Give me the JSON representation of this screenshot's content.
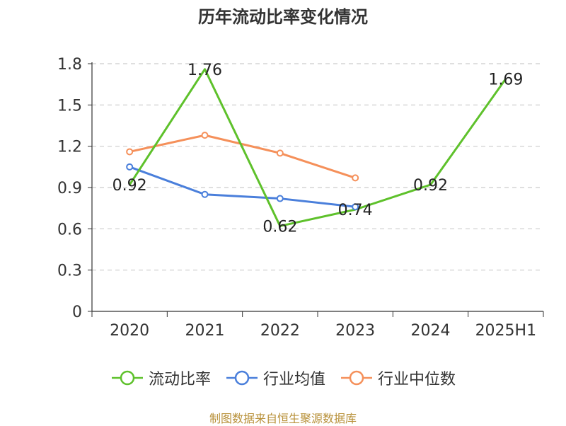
{
  "title": "历年流动比率变化情况",
  "source": "制图数据来自恒生聚源数据库",
  "colors": {
    "grid": "#cccccc",
    "axis": "#333333",
    "text": "#333333"
  },
  "chart_data": {
    "type": "line",
    "title": "历年流动比率变化情况",
    "categories": [
      "2020",
      "2021",
      "2022",
      "2023",
      "2024",
      "2025H1"
    ],
    "ylim": [
      0,
      1.8
    ],
    "yticks": [
      "0",
      "0.3",
      "0.6",
      "0.9",
      "1.2",
      "1.5",
      "1.8"
    ],
    "grid": true,
    "legend_position": "bottom",
    "series": [
      {
        "name": "流动比率",
        "color": "#5ec12b",
        "values": [
          0.92,
          1.76,
          0.62,
          0.74,
          0.92,
          1.69
        ],
        "labels": [
          "0.92",
          "1.76",
          "0.62",
          "0.74",
          "0.92",
          "1.69"
        ],
        "markers": false
      },
      {
        "name": "行业均值",
        "color": "#4a7fdb",
        "values": [
          1.05,
          0.85,
          0.82,
          0.76,
          null,
          null
        ],
        "markers": true
      },
      {
        "name": "行业中位数",
        "color": "#f5905a",
        "values": [
          1.16,
          1.28,
          1.15,
          0.97,
          null,
          null
        ],
        "markers": true
      }
    ]
  }
}
